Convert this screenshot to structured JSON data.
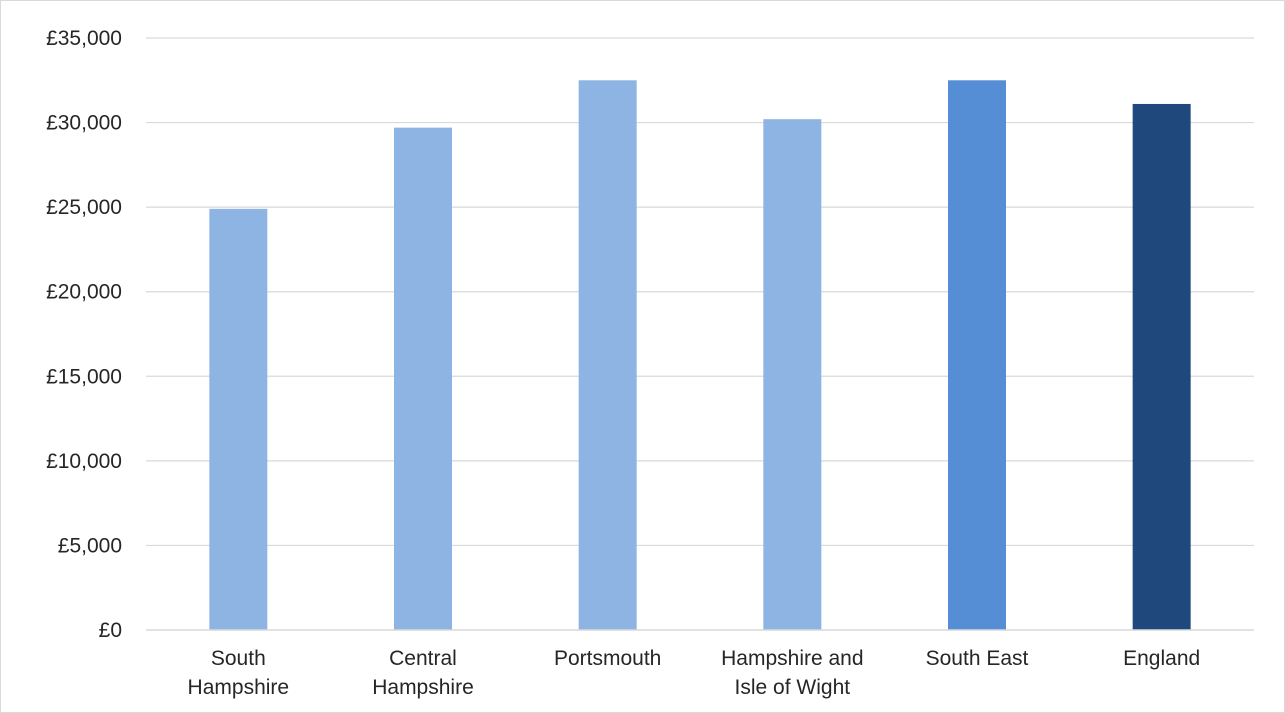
{
  "chart_data": {
    "type": "bar",
    "categories": [
      [
        "South",
        "Hampshire"
      ],
      [
        "Central",
        "Hampshire"
      ],
      [
        "Portsmouth"
      ],
      [
        "Hampshire and",
        "Isle of Wight"
      ],
      [
        "South East"
      ],
      [
        "England"
      ]
    ],
    "values": [
      24900,
      29700,
      32500,
      30200,
      32500,
      31100
    ],
    "colors": [
      "#8eb4e3",
      "#8eb4e3",
      "#8eb4e3",
      "#8eb4e3",
      "#558ed5",
      "#1f497d"
    ],
    "ylim": [
      0,
      35000
    ],
    "y_ticks": [
      0,
      5000,
      10000,
      15000,
      20000,
      25000,
      30000,
      35000
    ],
    "y_tick_labels": [
      "£0",
      "£5,000",
      "£10,000",
      "£15,000",
      "£20,000",
      "£25,000",
      "£30,000",
      "£35,000"
    ],
    "grid": true,
    "legend": "none"
  }
}
